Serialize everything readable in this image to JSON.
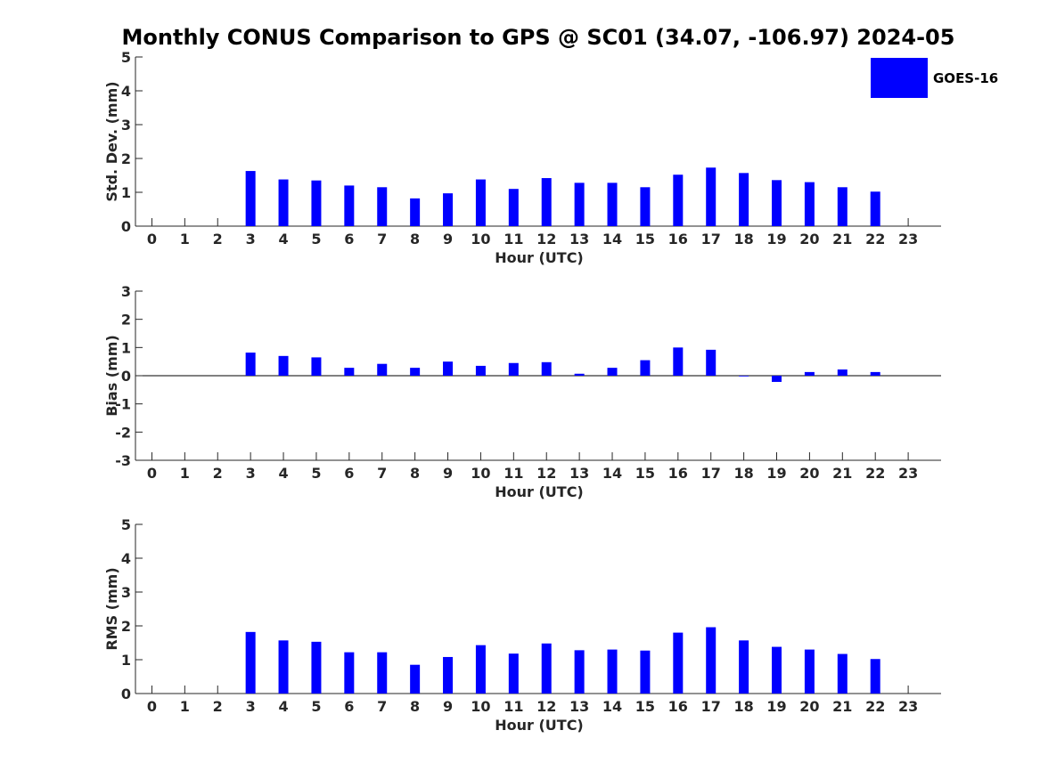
{
  "title": "Monthly CONUS Comparison to GPS @ SC01 (34.07, -106.97) 2024-05",
  "legend": {
    "label": "GOES-16",
    "color": "#0000ff",
    "position": "top-right"
  },
  "chart_data": [
    {
      "type": "bar",
      "ylabel": "Std. Dev. (mm)",
      "xlabel": "Hour (UTC)",
      "ylim": [
        0,
        5
      ],
      "yticks": [
        0,
        1,
        2,
        3,
        4,
        5
      ],
      "categories": [
        0,
        1,
        2,
        3,
        4,
        5,
        6,
        7,
        8,
        9,
        10,
        11,
        12,
        13,
        14,
        15,
        16,
        17,
        18,
        19,
        20,
        21,
        22,
        23
      ],
      "series": [
        {
          "name": "GOES-16",
          "values": [
            null,
            null,
            null,
            1.63,
            1.38,
            1.35,
            1.2,
            1.15,
            0.82,
            0.97,
            1.38,
            1.1,
            1.42,
            1.28,
            1.28,
            1.15,
            1.52,
            1.73,
            1.57,
            1.36,
            1.3,
            1.15,
            1.02,
            null
          ]
        }
      ],
      "grid": false
    },
    {
      "type": "bar",
      "ylabel": "Bias (mm)",
      "xlabel": "Hour (UTC)",
      "ylim": [
        -3,
        3
      ],
      "yticks": [
        -3,
        -2,
        -1,
        0,
        1,
        2,
        3
      ],
      "categories": [
        0,
        1,
        2,
        3,
        4,
        5,
        6,
        7,
        8,
        9,
        10,
        11,
        12,
        13,
        14,
        15,
        16,
        17,
        18,
        19,
        20,
        21,
        22,
        23
      ],
      "series": [
        {
          "name": "GOES-16",
          "values": [
            null,
            null,
            null,
            0.82,
            0.7,
            0.65,
            0.28,
            0.42,
            0.28,
            0.5,
            0.35,
            0.45,
            0.48,
            0.07,
            0.28,
            0.55,
            1.0,
            0.92,
            0.0,
            -0.22,
            0.13,
            0.22,
            0.13,
            null
          ]
        }
      ],
      "grid": false
    },
    {
      "type": "bar",
      "ylabel": "RMS (mm)",
      "xlabel": "Hour (UTC)",
      "ylim": [
        0,
        5
      ],
      "yticks": [
        0,
        1,
        2,
        3,
        4,
        5
      ],
      "categories": [
        0,
        1,
        2,
        3,
        4,
        5,
        6,
        7,
        8,
        9,
        10,
        11,
        12,
        13,
        14,
        15,
        16,
        17,
        18,
        19,
        20,
        21,
        22,
        23
      ],
      "series": [
        {
          "name": "GOES-16",
          "values": [
            null,
            null,
            null,
            1.82,
            1.57,
            1.53,
            1.22,
            1.22,
            0.85,
            1.08,
            1.43,
            1.18,
            1.48,
            1.28,
            1.3,
            1.27,
            1.8,
            1.96,
            1.57,
            1.38,
            1.3,
            1.17,
            1.02,
            null
          ]
        }
      ],
      "grid": false
    }
  ]
}
